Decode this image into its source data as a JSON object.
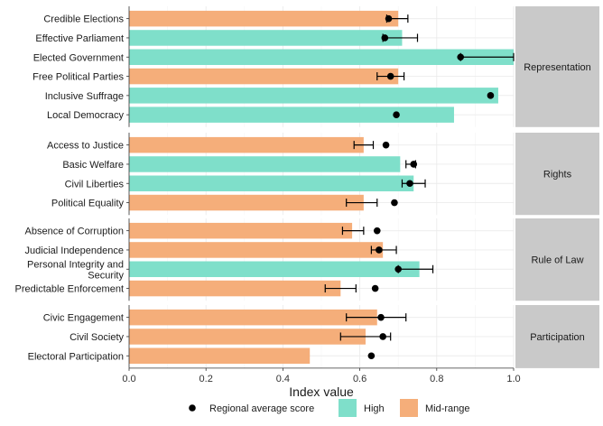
{
  "chart_data": {
    "type": "bar",
    "orientation": "horizontal",
    "xlabel": "Index value",
    "xlim": [
      0,
      1.0
    ],
    "xticks": [
      {
        "value": 0,
        "label": "0.0"
      },
      {
        "value": 0.2,
        "label": "0.2"
      },
      {
        "value": 0.4,
        "label": "0.4"
      },
      {
        "value": 0.6,
        "label": "0.6"
      },
      {
        "value": 0.8,
        "label": "0.8"
      },
      {
        "value": 1.0,
        "label": "1.0"
      }
    ],
    "grid": true,
    "legend": {
      "placement": "bottom",
      "point_label": "Regional average score",
      "categories": [
        {
          "name": "High",
          "color": "#7fdfca"
        },
        {
          "name": "Mid-range",
          "color": "#f5ae7a"
        }
      ]
    },
    "facets": [
      {
        "name": "Representation",
        "items": [
          {
            "label": "Credible Elections",
            "value": 0.7,
            "level": "Mid-range",
            "avg": 0.675,
            "err_low": 0.67,
            "err_high": 0.725
          },
          {
            "label": "Effective Parliament",
            "value": 0.71,
            "level": "High",
            "avg": 0.665,
            "err_low": 0.66,
            "err_high": 0.75
          },
          {
            "label": "Elected Government",
            "value": 1.0,
            "level": "High",
            "avg": 0.862,
            "err_low": 0.862,
            "err_high": 1.0
          },
          {
            "label": "Free Political Parties",
            "value": 0.7,
            "level": "Mid-range",
            "avg": 0.68,
            "err_low": 0.645,
            "err_high": 0.715
          },
          {
            "label": "Inclusive Suffrage",
            "value": 0.96,
            "level": "High",
            "avg": 0.94,
            "err_low": 0.94,
            "err_high": 0.94
          },
          {
            "label": "Local Democracy",
            "value": 0.845,
            "level": "High",
            "avg": 0.695,
            "err_low": 0.695,
            "err_high": 0.695
          }
        ]
      },
      {
        "name": "Rights",
        "items": [
          {
            "label": "Access to Justice",
            "value": 0.61,
            "level": "Mid-range",
            "avg": 0.668,
            "err_low": 0.585,
            "err_high": 0.635
          },
          {
            "label": "Basic Welfare",
            "value": 0.705,
            "level": "High",
            "avg": 0.74,
            "err_low": 0.72,
            "err_high": 0.745
          },
          {
            "label": "Civil Liberties",
            "value": 0.74,
            "level": "High",
            "avg": 0.73,
            "err_low": 0.71,
            "err_high": 0.77
          },
          {
            "label": "Political Equality",
            "value": 0.61,
            "level": "Mid-range",
            "avg": 0.69,
            "err_low": 0.565,
            "err_high": 0.645
          }
        ]
      },
      {
        "name": "Rule of Law",
        "items": [
          {
            "label": "Absence of Corruption",
            "value": 0.58,
            "level": "Mid-range",
            "avg": 0.645,
            "err_low": 0.555,
            "err_high": 0.61
          },
          {
            "label": "Judicial Independence",
            "value": 0.66,
            "level": "Mid-range",
            "avg": 0.65,
            "err_low": 0.63,
            "err_high": 0.695
          },
          {
            "label": "Personal Integrity and Security",
            "value": 0.755,
            "level": "High",
            "avg": 0.7,
            "err_low": 0.7,
            "err_high": 0.79
          },
          {
            "label": "Predictable Enforcement",
            "value": 0.55,
            "level": "Mid-range",
            "avg": 0.64,
            "err_low": 0.51,
            "err_high": 0.59
          }
        ]
      },
      {
        "name": "Participation",
        "items": [
          {
            "label": "Civic Engagement",
            "value": 0.645,
            "level": "Mid-range",
            "avg": 0.655,
            "err_low": 0.565,
            "err_high": 0.72
          },
          {
            "label": "Civil Society",
            "value": 0.615,
            "level": "Mid-range",
            "avg": 0.66,
            "err_low": 0.55,
            "err_high": 0.68
          },
          {
            "label": "Electoral Participation",
            "value": 0.47,
            "level": "Mid-range",
            "avg": 0.63,
            "err_low": 0.63,
            "err_high": 0.63
          }
        ]
      }
    ]
  }
}
